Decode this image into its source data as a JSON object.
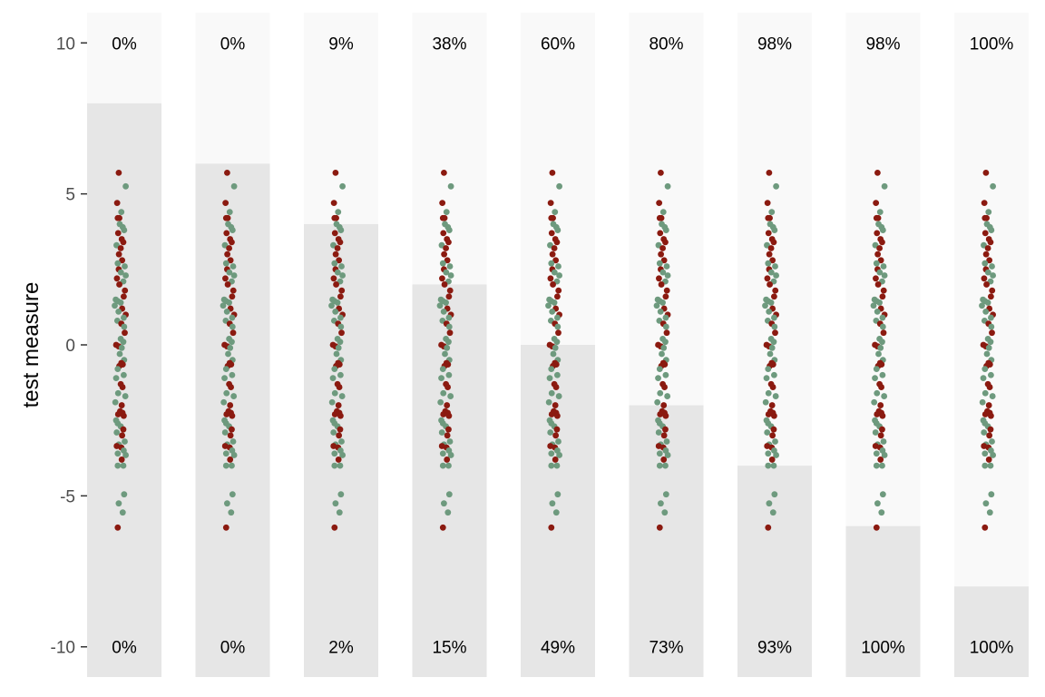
{
  "chart_data": {
    "type": "scatter",
    "ylabel": "test measure",
    "xlabel": "",
    "ylim": [
      -11,
      11
    ],
    "y_ticks": [
      10,
      5,
      0,
      -5,
      -10
    ],
    "y_tick_labels": [
      "10",
      "5",
      "0",
      "-5",
      "-10"
    ],
    "grid": false,
    "legend": "none",
    "colors": {
      "panel_upper": "#f9f9f9",
      "panel_lower": "#e6e6e6",
      "group_a": "#8b1a10",
      "group_b": "#6e9a7e",
      "tick_text": "#4d4d4d"
    },
    "panels": [
      {
        "threshold": 8,
        "top_label": "0%",
        "bottom_label": "0%"
      },
      {
        "threshold": 6,
        "top_label": "0%",
        "bottom_label": "0%"
      },
      {
        "threshold": 4,
        "top_label": "9%",
        "bottom_label": "2%"
      },
      {
        "threshold": 2,
        "top_label": "38%",
        "bottom_label": "15%"
      },
      {
        "threshold": 0,
        "top_label": "60%",
        "bottom_label": "49%"
      },
      {
        "threshold": -2,
        "top_label": "80%",
        "bottom_label": "73%"
      },
      {
        "threshold": -4,
        "top_label": "98%",
        "bottom_label": "93%"
      },
      {
        "threshold": -6,
        "top_label": "98%",
        "bottom_label": "100%"
      },
      {
        "threshold": -8,
        "top_label": "100%",
        "bottom_label": "100%"
      }
    ],
    "points": [
      {
        "y": 5.7,
        "jitter": -0.05,
        "group": "a"
      },
      {
        "y": 5.25,
        "jitter": 0.3,
        "group": "b"
      },
      {
        "y": 4.7,
        "jitter": -0.13,
        "group": "a"
      },
      {
        "y": 4.4,
        "jitter": 0.08,
        "group": "b"
      },
      {
        "y": 4.2,
        "jitter": -0.1,
        "group": "a"
      },
      {
        "y": 4.2,
        "jitter": -0.02,
        "group": "a"
      },
      {
        "y": 4.0,
        "jitter": 0.0,
        "group": "b"
      },
      {
        "y": 3.9,
        "jitter": 0.15,
        "group": "b"
      },
      {
        "y": 3.8,
        "jitter": 0.22,
        "group": "b"
      },
      {
        "y": 3.7,
        "jitter": -0.08,
        "group": "a"
      },
      {
        "y": 3.5,
        "jitter": 0.1,
        "group": "a"
      },
      {
        "y": 3.4,
        "jitter": 0.18,
        "group": "a"
      },
      {
        "y": 3.3,
        "jitter": -0.16,
        "group": "b"
      },
      {
        "y": 3.2,
        "jitter": 0.05,
        "group": "a"
      },
      {
        "y": 3.0,
        "jitter": -0.04,
        "group": "a"
      },
      {
        "y": 2.8,
        "jitter": 0.12,
        "group": "a"
      },
      {
        "y": 2.7,
        "jitter": -0.1,
        "group": "b"
      },
      {
        "y": 2.6,
        "jitter": 0.25,
        "group": "b"
      },
      {
        "y": 2.5,
        "jitter": -0.05,
        "group": "a"
      },
      {
        "y": 2.4,
        "jitter": 0.06,
        "group": "b"
      },
      {
        "y": 2.3,
        "jitter": 0.3,
        "group": "b"
      },
      {
        "y": 2.2,
        "jitter": -0.14,
        "group": "a"
      },
      {
        "y": 2.1,
        "jitter": 0.18,
        "group": "b"
      },
      {
        "y": 2.0,
        "jitter": -0.02,
        "group": "a"
      },
      {
        "y": 1.8,
        "jitter": 0.26,
        "group": "a"
      },
      {
        "y": 1.6,
        "jitter": 0.2,
        "group": "a"
      },
      {
        "y": 1.5,
        "jitter": -0.2,
        "group": "b"
      },
      {
        "y": 1.45,
        "jitter": -0.1,
        "group": "b"
      },
      {
        "y": 1.4,
        "jitter": 0.05,
        "group": "b"
      },
      {
        "y": 1.3,
        "jitter": -0.25,
        "group": "b"
      },
      {
        "y": 1.2,
        "jitter": 0.12,
        "group": "a"
      },
      {
        "y": 1.1,
        "jitter": -0.06,
        "group": "b"
      },
      {
        "y": 1.0,
        "jitter": 0.3,
        "group": "a"
      },
      {
        "y": 0.9,
        "jitter": 0.2,
        "group": "b"
      },
      {
        "y": 0.8,
        "jitter": -0.12,
        "group": "b"
      },
      {
        "y": 0.7,
        "jitter": 0.08,
        "group": "a"
      },
      {
        "y": 0.6,
        "jitter": 0.22,
        "group": "b"
      },
      {
        "y": 0.4,
        "jitter": 0.25,
        "group": "a"
      },
      {
        "y": 0.2,
        "jitter": 0.05,
        "group": "b"
      },
      {
        "y": 0.1,
        "jitter": 0.18,
        "group": "b"
      },
      {
        "y": 0.0,
        "jitter": -0.18,
        "group": "a"
      },
      {
        "y": -0.05,
        "jitter": -0.05,
        "group": "a"
      },
      {
        "y": -0.1,
        "jitter": 0.1,
        "group": "b"
      },
      {
        "y": -0.3,
        "jitter": 0.0,
        "group": "b"
      },
      {
        "y": -0.5,
        "jitter": 0.22,
        "group": "b"
      },
      {
        "y": -0.6,
        "jitter": 0.08,
        "group": "a"
      },
      {
        "y": -0.65,
        "jitter": 0.15,
        "group": "a"
      },
      {
        "y": -0.7,
        "jitter": -0.02,
        "group": "a"
      },
      {
        "y": -0.8,
        "jitter": -0.1,
        "group": "b"
      },
      {
        "y": -1.0,
        "jitter": 0.2,
        "group": "b"
      },
      {
        "y": -1.1,
        "jitter": -0.18,
        "group": "b"
      },
      {
        "y": -1.3,
        "jitter": 0.05,
        "group": "a"
      },
      {
        "y": -1.4,
        "jitter": 0.14,
        "group": "a"
      },
      {
        "y": -1.6,
        "jitter": -0.08,
        "group": "b"
      },
      {
        "y": -1.7,
        "jitter": 0.28,
        "group": "b"
      },
      {
        "y": -1.9,
        "jitter": -0.22,
        "group": "b"
      },
      {
        "y": -2.0,
        "jitter": 0.1,
        "group": "a"
      },
      {
        "y": -2.2,
        "jitter": 0.02,
        "group": "a"
      },
      {
        "y": -2.25,
        "jitter": 0.14,
        "group": "a"
      },
      {
        "y": -2.3,
        "jitter": -0.08,
        "group": "a"
      },
      {
        "y": -2.35,
        "jitter": 0.2,
        "group": "a"
      },
      {
        "y": -2.5,
        "jitter": -0.18,
        "group": "b"
      },
      {
        "y": -2.6,
        "jitter": -0.1,
        "group": "b"
      },
      {
        "y": -2.7,
        "jitter": 0.05,
        "group": "b"
      },
      {
        "y": -2.8,
        "jitter": 0.18,
        "group": "a"
      },
      {
        "y": -2.9,
        "jitter": -0.15,
        "group": "b"
      },
      {
        "y": -3.0,
        "jitter": 0.12,
        "group": "a"
      },
      {
        "y": -3.2,
        "jitter": 0.25,
        "group": "b"
      },
      {
        "y": -3.3,
        "jitter": -0.05,
        "group": "b"
      },
      {
        "y": -3.35,
        "jitter": -0.15,
        "group": "a"
      },
      {
        "y": -3.4,
        "jitter": 0.08,
        "group": "a"
      },
      {
        "y": -3.5,
        "jitter": 0.2,
        "group": "b"
      },
      {
        "y": -3.6,
        "jitter": -0.1,
        "group": "b"
      },
      {
        "y": -3.65,
        "jitter": 0.3,
        "group": "b"
      },
      {
        "y": -3.8,
        "jitter": 0.1,
        "group": "a"
      },
      {
        "y": -4.0,
        "jitter": -0.1,
        "group": "b"
      },
      {
        "y": -4.0,
        "jitter": 0.18,
        "group": "b"
      },
      {
        "y": -4.95,
        "jitter": 0.22,
        "group": "b"
      },
      {
        "y": -5.25,
        "jitter": -0.05,
        "group": "b"
      },
      {
        "y": -5.55,
        "jitter": 0.15,
        "group": "b"
      },
      {
        "y": -6.05,
        "jitter": -0.1,
        "group": "a"
      }
    ]
  }
}
